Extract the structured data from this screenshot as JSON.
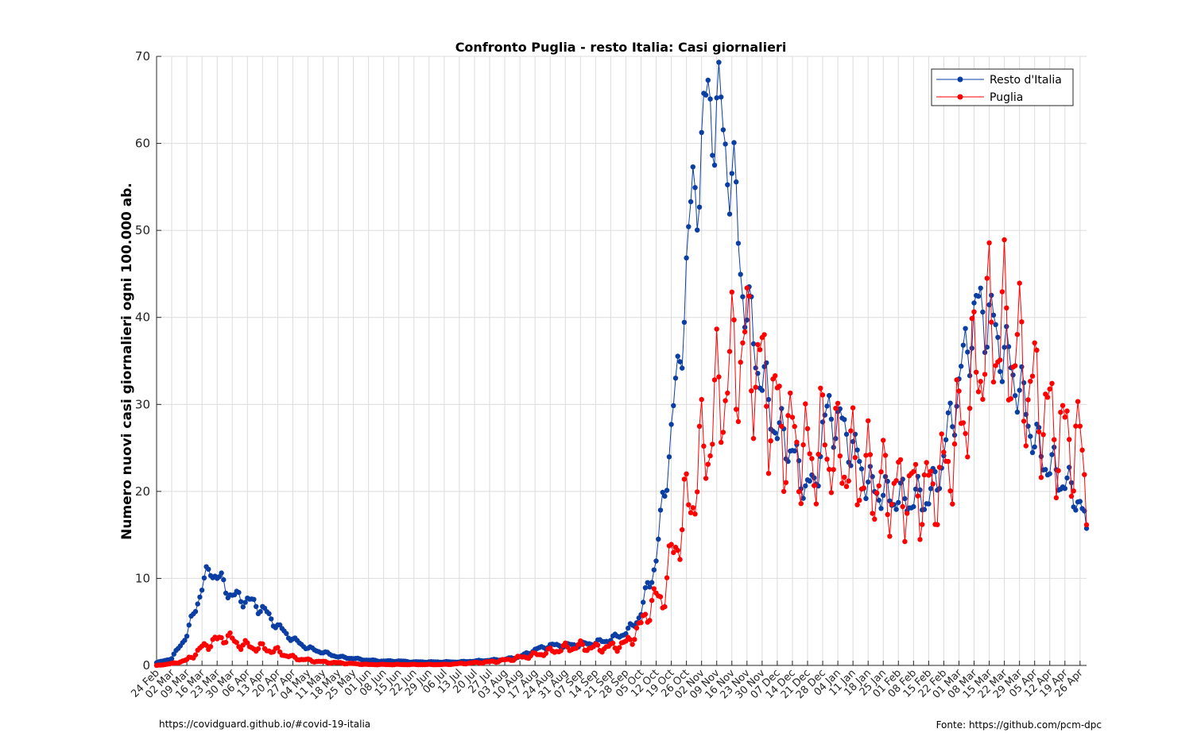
{
  "chart_data": {
    "type": "line",
    "title": "Confronto Puglia - resto Italia: Casi giornalieri",
    "xlabel": "",
    "ylabel": "Numero nuovi casi giornalieri ogni 100.000 ab.",
    "ylim": [
      0,
      70
    ],
    "yticks": [
      0,
      10,
      20,
      30,
      40,
      50,
      60,
      70
    ],
    "x_start": "24 Feb",
    "x_end": "29 Apr",
    "xtick_labels": [
      "24 Feb",
      "02 Mar",
      "09 Mar",
      "16 Mar",
      "23 Mar",
      "30 Mar",
      "06 Apr",
      "13 Apr",
      "20 Apr",
      "27 Apr",
      "04 May",
      "11 May",
      "18 May",
      "25 May",
      "01 Jun",
      "08 Jun",
      "15 Jun",
      "22 Jun",
      "29 Jun",
      "06 Jul",
      "13 Jul",
      "20 Jul",
      "27 Jul",
      "03 Aug",
      "10 Aug",
      "17 Aug",
      "24 Aug",
      "31 Aug",
      "07 Sep",
      "14 Sep",
      "21 Sep",
      "28 Sep",
      "05 Oct",
      "12 Oct",
      "19 Oct",
      "26 Oct",
      "02 Nov",
      "09 Nov",
      "16 Nov",
      "23 Nov",
      "30 Nov",
      "07 Dec",
      "14 Dec",
      "21 Dec",
      "28 Dec",
      "04 Jan",
      "11 Jan",
      "18 Jan",
      "25 Jan",
      "01 Feb",
      "08 Feb",
      "15 Feb",
      "22 Feb",
      "01 Mar",
      "08 Mar",
      "15 Mar",
      "22 Mar",
      "29 Mar",
      "05 Apr",
      "12 Apr",
      "19 Apr",
      "26 Apr"
    ],
    "grid": true,
    "legend_position": "top-right",
    "series": [
      {
        "name": "Resto d'Italia",
        "color": "#0b3ea3",
        "keypoints": [
          [
            "24 Feb",
            0.3
          ],
          [
            "02 Mar",
            0.8
          ],
          [
            "09 Mar",
            3.5
          ],
          [
            "16 Mar",
            9.0
          ],
          [
            "20 Mar",
            11.2
          ],
          [
            "23 Mar",
            10.2
          ],
          [
            "30 Mar",
            8.0
          ],
          [
            "06 Apr",
            7.5
          ],
          [
            "13 Apr",
            6.5
          ],
          [
            "20 Apr",
            4.5
          ],
          [
            "27 Apr",
            3.0
          ],
          [
            "04 May",
            2.0
          ],
          [
            "11 May",
            1.5
          ],
          [
            "18 May",
            1.0
          ],
          [
            "25 May",
            0.8
          ],
          [
            "01 Jun",
            0.6
          ],
          [
            "08 Jun",
            0.5
          ],
          [
            "15 Jun",
            0.5
          ],
          [
            "22 Jun",
            0.4
          ],
          [
            "29 Jun",
            0.4
          ],
          [
            "06 Jul",
            0.4
          ],
          [
            "13 Jul",
            0.4
          ],
          [
            "20 Jul",
            0.5
          ],
          [
            "27 Jul",
            0.6
          ],
          [
            "03 Aug",
            0.7
          ],
          [
            "10 Aug",
            1.0
          ],
          [
            "17 Aug",
            1.8
          ],
          [
            "24 Aug",
            2.3
          ],
          [
            "31 Aug",
            2.3
          ],
          [
            "07 Sep",
            2.4
          ],
          [
            "14 Sep",
            2.6
          ],
          [
            "21 Sep",
            3.0
          ],
          [
            "28 Sep",
            3.8
          ],
          [
            "01 Oct",
            4.5
          ],
          [
            "05 Oct",
            6.0
          ],
          [
            "08 Oct",
            9.0
          ],
          [
            "12 Oct",
            12.0
          ],
          [
            "15 Oct",
            18.5
          ],
          [
            "19 Oct",
            27.0
          ],
          [
            "22 Oct",
            33.0
          ],
          [
            "26 Oct",
            45.0
          ],
          [
            "29 Oct",
            54.0
          ],
          [
            "02 Nov",
            59.0
          ],
          [
            "05 Nov",
            65.0
          ],
          [
            "09 Nov",
            64.0
          ],
          [
            "12 Nov",
            61.0
          ],
          [
            "16 Nov",
            57.0
          ],
          [
            "20 Nov",
            46.0
          ],
          [
            "23 Nov",
            41.0
          ],
          [
            "26 Nov",
            37.0
          ],
          [
            "30 Nov",
            33.0
          ],
          [
            "03 Dec",
            30.0
          ],
          [
            "07 Dec",
            27.0
          ],
          [
            "10 Dec",
            26.0
          ],
          [
            "14 Dec",
            25.0
          ],
          [
            "17 Dec",
            22.0
          ],
          [
            "21 Dec",
            21.0
          ],
          [
            "24 Dec",
            20.0
          ],
          [
            "28 Dec",
            27.0
          ],
          [
            "31 Dec",
            29.0
          ],
          [
            "04 Jan",
            28.0
          ],
          [
            "07 Jan",
            27.0
          ],
          [
            "11 Jan",
            25.0
          ],
          [
            "14 Jan",
            23.0
          ],
          [
            "18 Jan",
            21.0
          ],
          [
            "21 Jan",
            20.0
          ],
          [
            "25 Jan",
            20.0
          ],
          [
            "28 Jan",
            19.0
          ],
          [
            "01 Feb",
            19.5
          ],
          [
            "04 Feb",
            19.0
          ],
          [
            "08 Feb",
            19.0
          ],
          [
            "11 Feb",
            19.5
          ],
          [
            "15 Feb",
            19.0
          ],
          [
            "18 Feb",
            21.0
          ],
          [
            "22 Feb",
            24.0
          ],
          [
            "25 Feb",
            28.0
          ],
          [
            "01 Mar",
            32.0
          ],
          [
            "04 Mar",
            36.0
          ],
          [
            "08 Mar",
            40.0
          ],
          [
            "11 Mar",
            41.0
          ],
          [
            "15 Mar",
            40.0
          ],
          [
            "18 Mar",
            38.0
          ],
          [
            "22 Mar",
            36.0
          ],
          [
            "25 Mar",
            34.0
          ],
          [
            "29 Mar",
            32.0
          ],
          [
            "01 Apr",
            29.0
          ],
          [
            "05 Apr",
            26.0
          ],
          [
            "08 Apr",
            24.0
          ],
          [
            "12 Apr",
            23.0
          ],
          [
            "15 Apr",
            22.0
          ],
          [
            "19 Apr",
            21.0
          ],
          [
            "22 Apr",
            20.0
          ],
          [
            "26 Apr",
            19.0
          ],
          [
            "29 Apr",
            14.7
          ]
        ]
      },
      {
        "name": "Puglia",
        "color": "#ff0000",
        "keypoints": [
          [
            "24 Feb",
            0.0
          ],
          [
            "02 Mar",
            0.2
          ],
          [
            "09 Mar",
            0.6
          ],
          [
            "16 Mar",
            2.0
          ],
          [
            "20 Mar",
            2.7
          ],
          [
            "23 Mar",
            2.8
          ],
          [
            "27 Mar",
            3.5
          ],
          [
            "30 Mar",
            2.8
          ],
          [
            "06 Apr",
            2.2
          ],
          [
            "13 Apr",
            2.0
          ],
          [
            "20 Apr",
            1.6
          ],
          [
            "27 Apr",
            0.9
          ],
          [
            "04 May",
            0.6
          ],
          [
            "11 May",
            0.4
          ],
          [
            "18 May",
            0.3
          ],
          [
            "25 May",
            0.2
          ],
          [
            "01 Jun",
            0.1
          ],
          [
            "08 Jun",
            0.1
          ],
          [
            "15 Jun",
            0.1
          ],
          [
            "22 Jun",
            0.1
          ],
          [
            "29 Jun",
            0.1
          ],
          [
            "06 Jul",
            0.1
          ],
          [
            "13 Jul",
            0.2
          ],
          [
            "20 Jul",
            0.3
          ],
          [
            "27 Jul",
            0.4
          ],
          [
            "03 Aug",
            0.6
          ],
          [
            "10 Aug",
            0.9
          ],
          [
            "17 Aug",
            1.2
          ],
          [
            "24 Aug",
            1.6
          ],
          [
            "31 Aug",
            2.0
          ],
          [
            "07 Sep",
            2.2
          ],
          [
            "14 Sep",
            2.0
          ],
          [
            "21 Sep",
            2.1
          ],
          [
            "28 Sep",
            2.5
          ],
          [
            "05 Oct",
            4.5
          ],
          [
            "08 Oct",
            6.5
          ],
          [
            "12 Oct",
            7.5
          ],
          [
            "15 Oct",
            8.0
          ],
          [
            "19 Oct",
            12.0
          ],
          [
            "22 Oct",
            15.0
          ],
          [
            "26 Oct",
            18.0
          ],
          [
            "29 Oct",
            20.0
          ],
          [
            "02 Nov",
            24.0
          ],
          [
            "05 Nov",
            26.0
          ],
          [
            "09 Nov",
            30.0
          ],
          [
            "12 Nov",
            32.0
          ],
          [
            "16 Nov",
            34.0
          ],
          [
            "20 Nov",
            37.0
          ],
          [
            "23 Nov",
            36.0
          ],
          [
            "26 Nov",
            36.0
          ],
          [
            "30 Nov",
            33.0
          ],
          [
            "03 Dec",
            31.0
          ],
          [
            "07 Dec",
            29.0
          ],
          [
            "10 Dec",
            27.0
          ],
          [
            "14 Dec",
            26.0
          ],
          [
            "17 Dec",
            25.0
          ],
          [
            "21 Dec",
            24.0
          ],
          [
            "24 Dec",
            24.0
          ],
          [
            "28 Dec",
            26.0
          ],
          [
            "31 Dec",
            25.0
          ],
          [
            "04 Jan",
            24.0
          ],
          [
            "07 Jan",
            24.0
          ],
          [
            "11 Jan",
            23.0
          ],
          [
            "14 Jan",
            22.0
          ],
          [
            "18 Jan",
            22.0
          ],
          [
            "21 Jan",
            21.0
          ],
          [
            "25 Jan",
            21.0
          ],
          [
            "28 Jan",
            20.0
          ],
          [
            "01 Feb",
            20.0
          ],
          [
            "04 Feb",
            20.0
          ],
          [
            "08 Feb",
            20.0
          ],
          [
            "11 Feb",
            20.0
          ],
          [
            "15 Feb",
            20.0
          ],
          [
            "18 Feb",
            21.0
          ],
          [
            "22 Feb",
            22.0
          ],
          [
            "25 Feb",
            24.0
          ],
          [
            "01 Mar",
            27.0
          ],
          [
            "04 Mar",
            30.0
          ],
          [
            "08 Mar",
            33.0
          ],
          [
            "11 Mar",
            36.0
          ],
          [
            "15 Mar",
            38.0
          ],
          [
            "18 Mar",
            39.0
          ],
          [
            "22 Mar",
            38.0
          ],
          [
            "25 Mar",
            37.0
          ],
          [
            "29 Mar",
            35.0
          ],
          [
            "01 Apr",
            33.0
          ],
          [
            "05 Apr",
            31.0
          ],
          [
            "08 Apr",
            30.0
          ],
          [
            "12 Apr",
            28.0
          ],
          [
            "15 Apr",
            27.0
          ],
          [
            "19 Apr",
            26.0
          ],
          [
            "22 Apr",
            26.0
          ],
          [
            "26 Apr",
            25.0
          ],
          [
            "29 Apr",
            20.0
          ]
        ]
      }
    ]
  },
  "footer": {
    "left": "https://covidguard.github.io/#covid-19-italia",
    "right": "Fonte: https://github.com/pcm-dpc"
  }
}
